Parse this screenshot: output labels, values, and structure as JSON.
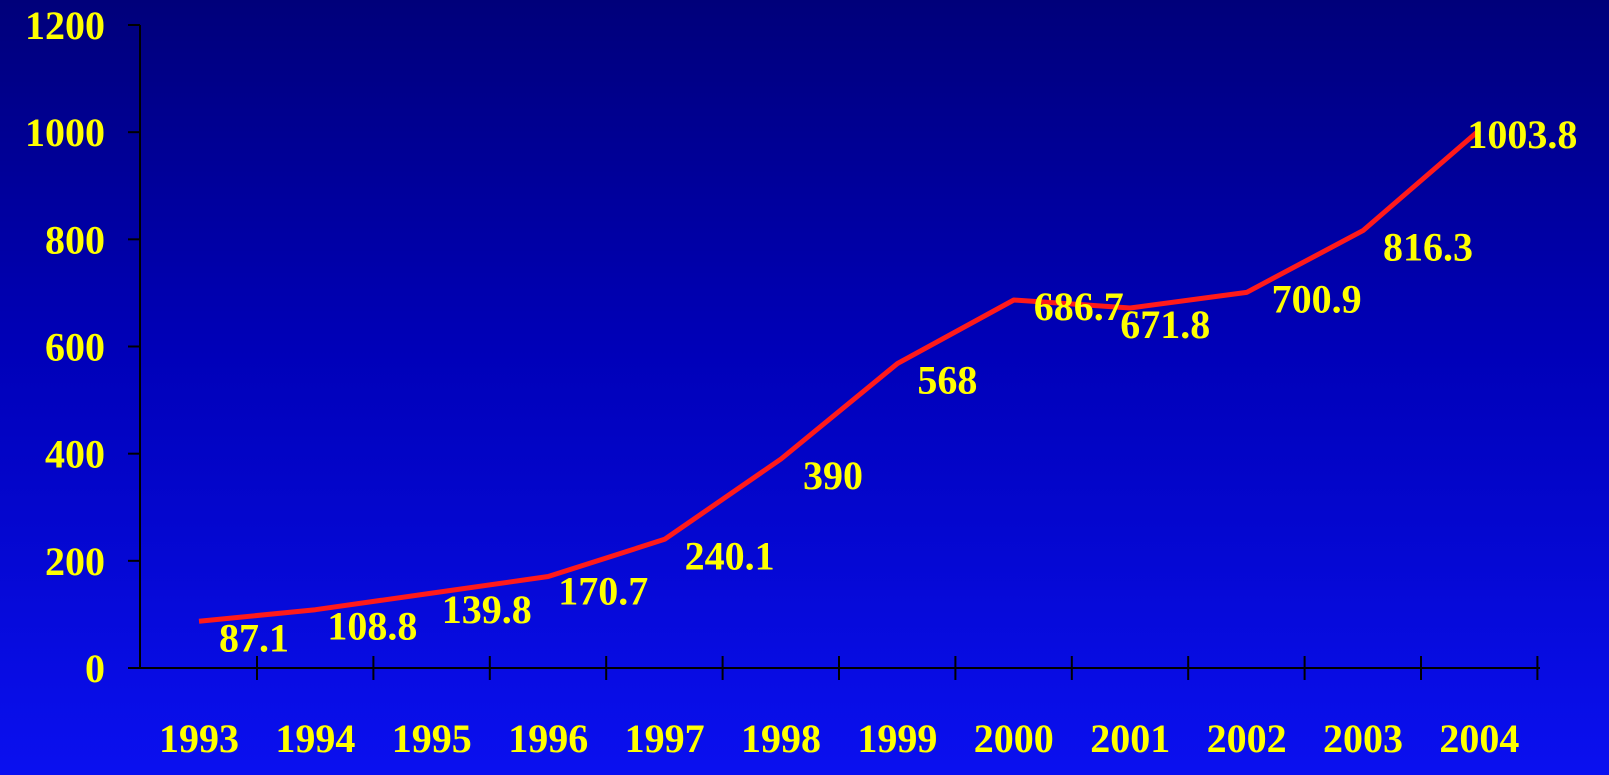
{
  "chart_data": {
    "type": "line",
    "categories": [
      "1993",
      "1994",
      "1995",
      "1996",
      "1997",
      "1998",
      "1999",
      "2000",
      "2001",
      "2002",
      "2003",
      "2004"
    ],
    "series": [
      {
        "values": [
          87.1,
          108.8,
          139.8,
          170.7,
          240.1,
          390,
          568,
          686.7,
          671.8,
          700.9,
          816.3,
          1003.8
        ],
        "data_labels": [
          "87.1",
          "108.8",
          "139.8",
          "170.7",
          "240.1",
          "390",
          "568",
          "686.7",
          "671.8",
          "700.9",
          "816.3",
          "1003.8"
        ]
      }
    ],
    "y_ticks": [
      "0",
      "200",
      "400",
      "600",
      "800",
      "1000",
      "1200"
    ],
    "ylim": [
      0,
      1200
    ],
    "title": "",
    "xlabel": "",
    "ylabel": "",
    "grid": false,
    "legend": "none",
    "colors": {
      "line": "#ff1a1a",
      "text": "#ffff00",
      "axis": "#000000",
      "background_top": "#00007a",
      "background_bottom": "#0a10f0"
    }
  }
}
